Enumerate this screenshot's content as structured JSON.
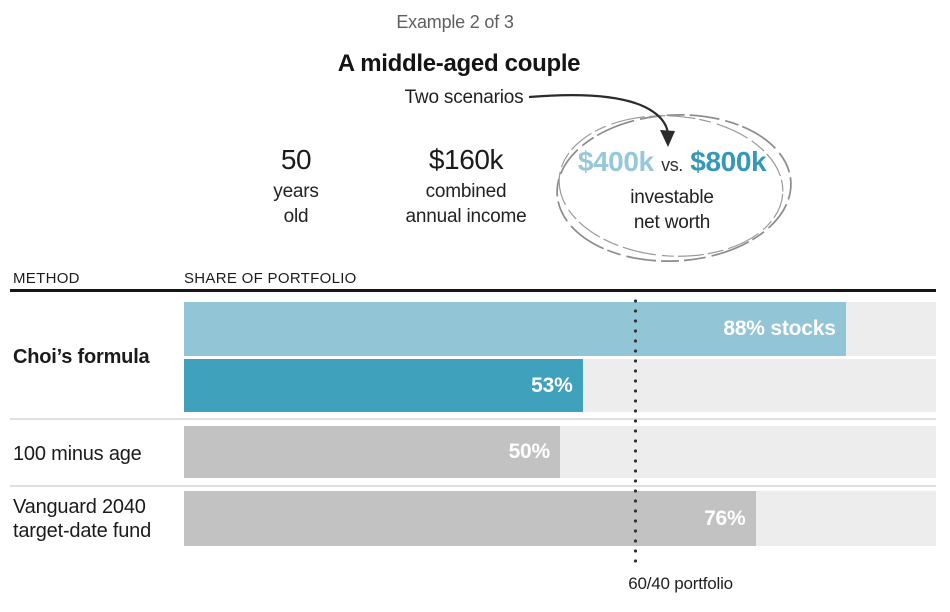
{
  "header": {
    "example_label": "Example 2 of 3",
    "title": "A middle-aged couple",
    "scenarios_label": "Two scenarios"
  },
  "profile": {
    "age": {
      "value": "50",
      "line1": "years",
      "line2": "old"
    },
    "income": {
      "value": "$160k",
      "line1": "combined",
      "line2": "annual income"
    },
    "net_worth": {
      "value_low": "$400k",
      "separator": "vs.",
      "value_high": "$800k",
      "line1": "investable",
      "line2": "net worth"
    }
  },
  "table_headers": {
    "method": "METHOD",
    "share": "SHARE OF PORTFOLIO"
  },
  "chart_data": {
    "type": "bar",
    "orientation": "horizontal",
    "x_axis": {
      "min": 0,
      "max": 100,
      "unit": "percent share of portfolio in stocks"
    },
    "grid": false,
    "rows": [
      {
        "method": "Choi’s formula",
        "bold": true,
        "bars": [
          {
            "value": 88,
            "label": "88% stocks",
            "color": "#92c5d6"
          },
          {
            "value": 53,
            "label": "53%",
            "color": "#3fa1bb"
          }
        ]
      },
      {
        "method": "100 minus age",
        "bold": false,
        "bars": [
          {
            "value": 50,
            "label": "50%",
            "color": "#c2c2c2"
          }
        ]
      },
      {
        "method": "Vanguard 2040 target-date fund",
        "bold": false,
        "bars": [
          {
            "value": 76,
            "label": "76%",
            "color": "#c2c2c2"
          }
        ]
      }
    ],
    "reference_line": {
      "value": 60,
      "label": "60/40 portfolio"
    }
  },
  "colors": {
    "scenario_low_bar": "#92c5d6",
    "scenario_high_bar": "#3fa1bb",
    "gray_bar": "#c2c2c2",
    "bar_track": "#ededee",
    "net_worth_low_text": "#97c8da",
    "net_worth_high_text": "#3598b8",
    "header_rule": "#161616",
    "muted_text": "#5f5f5f"
  }
}
